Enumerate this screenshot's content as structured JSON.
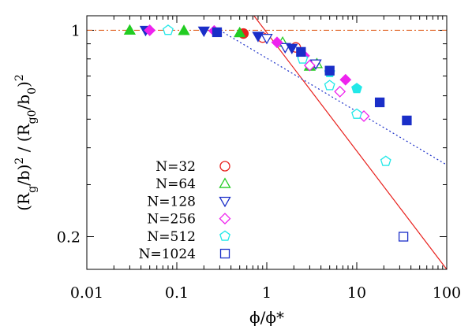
{
  "chart_data": {
    "type": "scatter",
    "xscale": "log",
    "yscale": "log",
    "xlim": [
      0.01,
      100
    ],
    "ylim": [
      0.155,
      1.12
    ],
    "xlabel": "ϕ/ϕ*",
    "ylabel": "(R_g/b)^2 / (R_g0/b_0)^2",
    "xticks": [
      {
        "value": 0.01,
        "label": "0.01"
      },
      {
        "value": 0.1,
        "label": "0.1"
      },
      {
        "value": 1,
        "label": "1"
      },
      {
        "value": 10,
        "label": "10"
      },
      {
        "value": 100,
        "label": "100"
      }
    ],
    "yticks": [
      {
        "value": 1,
        "label": "1"
      },
      {
        "value": 0.2,
        "label": "0.2"
      }
    ],
    "legend_position": "bottom-left",
    "reference_lines": [
      {
        "name": "plateau",
        "style": "dash-dot",
        "color": "#e06020",
        "points": [
          [
            0.01,
            1.0
          ],
          [
            100,
            1.0
          ]
        ]
      },
      {
        "name": "semidilute-scaling",
        "style": "solid",
        "color": "#e8201c",
        "points": [
          [
            0.72,
            1.12
          ],
          [
            100,
            0.155
          ]
        ]
      },
      {
        "name": "melt-trend",
        "style": "dotted",
        "color": "#1a2ec8",
        "points": [
          [
            0.3,
            1.0
          ],
          [
            100,
            0.35
          ]
        ]
      }
    ],
    "series": [
      {
        "name": "N=32",
        "marker": "circle",
        "color": "#e8201c",
        "open_points": [
          [
            0.9,
            0.945
          ],
          [
            2.1,
            0.875
          ]
        ],
        "filled_points": [
          [
            0.55,
            0.975
          ]
        ]
      },
      {
        "name": "N=64",
        "marker": "triangle",
        "color": "#22cc22",
        "open_points": [
          [
            1.5,
            0.91
          ],
          [
            3.6,
            0.77
          ]
        ],
        "filled_points": [
          [
            0.03,
            1.0
          ],
          [
            0.12,
            0.997
          ],
          [
            0.5,
            0.98
          ],
          [
            3.0,
            0.755
          ]
        ]
      },
      {
        "name": "N=128",
        "marker": "triangle-down",
        "color": "#1a2ec8",
        "open_points": [
          [
            1.0,
            0.94
          ],
          [
            1.6,
            0.875
          ],
          [
            3.5,
            0.77
          ]
        ],
        "filled_points": [
          [
            0.045,
            1.0
          ],
          [
            0.2,
            0.995
          ],
          [
            0.8,
            0.955
          ],
          [
            1.9,
            0.87
          ]
        ]
      },
      {
        "name": "N=256",
        "marker": "diamond",
        "color": "#ee22ee",
        "open_points": [
          [
            3.0,
            0.76
          ],
          [
            6.5,
            0.62
          ],
          [
            12.0,
            0.512
          ]
        ],
        "filled_points": [
          [
            0.05,
            1.0
          ],
          [
            0.26,
            0.995
          ],
          [
            1.3,
            0.91
          ],
          [
            2.6,
            0.82
          ],
          [
            7.5,
            0.68
          ]
        ]
      },
      {
        "name": "N=512",
        "marker": "pentagon",
        "color": "#22e8e8",
        "open_points": [
          [
            0.08,
            1.0
          ],
          [
            2.5,
            0.8
          ],
          [
            5.0,
            0.65
          ],
          [
            10.0,
            0.52
          ],
          [
            21.0,
            0.36
          ]
        ],
        "filled_points": [
          [
            5.0,
            0.72
          ],
          [
            10.0,
            0.635
          ]
        ]
      },
      {
        "name": "N=1024",
        "marker": "square",
        "color": "#1a2ec8",
        "open_points": [
          [
            33.0,
            0.2
          ]
        ],
        "filled_points": [
          [
            0.28,
            0.985
          ],
          [
            2.4,
            0.845
          ],
          [
            5.0,
            0.73
          ],
          [
            18.0,
            0.57
          ],
          [
            36.0,
            0.495
          ]
        ]
      }
    ]
  }
}
